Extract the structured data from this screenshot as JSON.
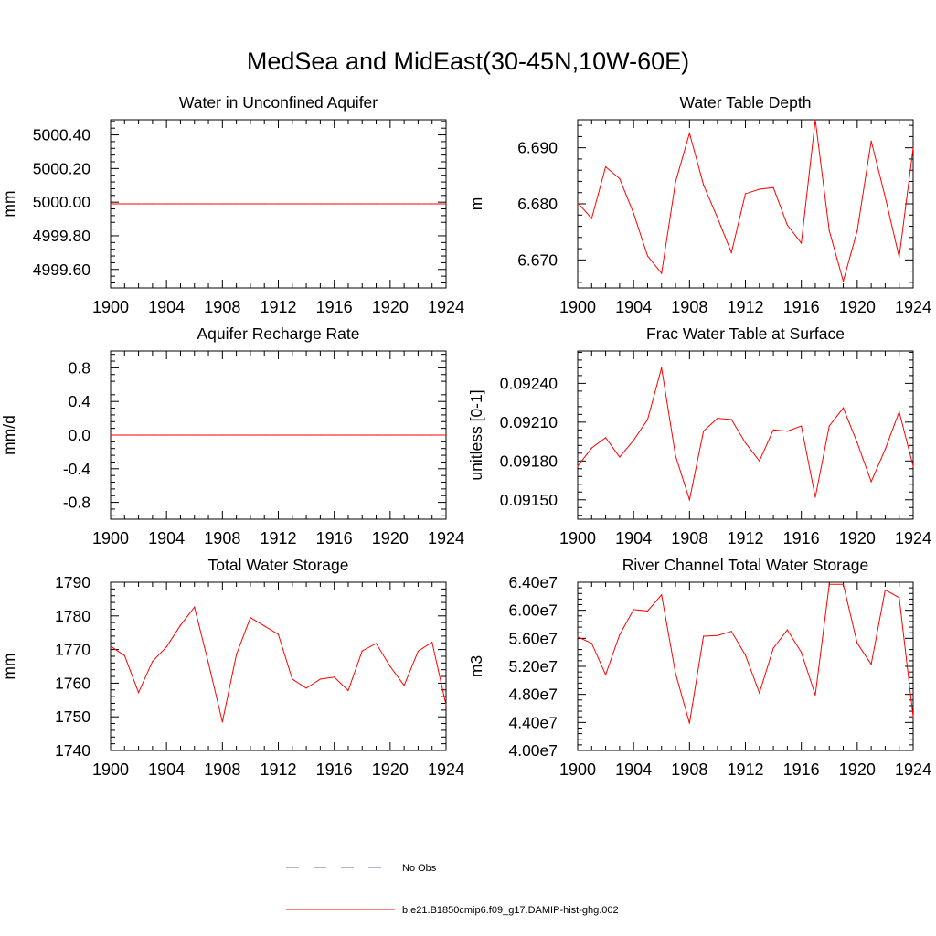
{
  "title": "MedSea and MidEast(30-45N,10W-60E)",
  "colors": {
    "model": "#ff0000",
    "obs": "#5a6ea8",
    "axis": "#000000"
  },
  "legend": {
    "obs_label": "No Obs",
    "model_label": "b.e21.B1850cmip6.f09_g17.DAMIP-hist-ghg.002"
  },
  "chart_data": [
    {
      "type": "line",
      "title": "Water in Unconfined Aquifer",
      "ylabel": "mm",
      "xlim": [
        1900,
        1924
      ],
      "ylim": [
        4999.49,
        5000.49
      ],
      "x_ticks": [
        "1900",
        "1904",
        "1908",
        "1912",
        "1916",
        "1920",
        "1924"
      ],
      "y_ticks": [
        {
          "v": 4999.6,
          "label": "4999.60"
        },
        {
          "v": 4999.8,
          "label": "4999.80"
        },
        {
          "v": 5000.0,
          "label": "5000.00"
        },
        {
          "v": 5000.2,
          "label": "5000.20"
        },
        {
          "v": 5000.4,
          "label": "5000.40"
        }
      ],
      "series": [
        {
          "x": [
            1900,
            1901,
            1902,
            1903,
            1904,
            1905,
            1906,
            1907,
            1908,
            1909,
            1910,
            1911,
            1912,
            1913,
            1914,
            1915,
            1916,
            1917,
            1918,
            1919,
            1920,
            1921,
            1922,
            1923,
            1924
          ],
          "y": [
            4999.99,
            4999.99,
            4999.99,
            4999.99,
            4999.99,
            4999.99,
            4999.99,
            4999.99,
            4999.99,
            4999.99,
            4999.99,
            4999.99,
            4999.99,
            4999.99,
            4999.99,
            4999.99,
            4999.99,
            4999.99,
            4999.99,
            4999.99,
            4999.99,
            4999.99,
            4999.99,
            4999.99,
            4999.99
          ]
        }
      ]
    },
    {
      "type": "line",
      "title": "Water Table Depth",
      "ylabel": "m",
      "xlim": [
        1900,
        1924
      ],
      "ylim": [
        6.665,
        6.695
      ],
      "x_ticks": [
        "1900",
        "1904",
        "1908",
        "1912",
        "1916",
        "1920",
        "1924"
      ],
      "y_ticks": [
        {
          "v": 6.67,
          "label": "6.670"
        },
        {
          "v": 6.68,
          "label": "6.680"
        },
        {
          "v": 6.69,
          "label": "6.690"
        }
      ],
      "series": [
        {
          "x": [
            1900,
            1901,
            1902,
            1903,
            1904,
            1905,
            1906,
            1907,
            1908,
            1909,
            1910,
            1911,
            1912,
            1913,
            1914,
            1915,
            1916,
            1917,
            1918,
            1919,
            1920,
            1921,
            1922,
            1923,
            1924
          ],
          "y": [
            6.6802,
            6.6774,
            6.6866,
            6.6845,
            6.6783,
            6.6707,
            6.6676,
            6.6839,
            6.6926,
            6.6834,
            6.6775,
            6.6713,
            6.6818,
            6.6826,
            6.6829,
            6.6762,
            6.673,
            6.695,
            6.6752,
            6.6662,
            6.6752,
            6.6912,
            6.6812,
            6.6705,
            6.69
          ]
        }
      ]
    },
    {
      "type": "line",
      "title": "Aquifer Recharge Rate",
      "ylabel": "mm/d",
      "xlim": [
        1900,
        1924
      ],
      "ylim": [
        -1.0,
        1.0
      ],
      "x_ticks": [
        "1900",
        "1904",
        "1908",
        "1912",
        "1916",
        "1920",
        "1924"
      ],
      "y_ticks": [
        {
          "v": -0.8,
          "label": "-0.8"
        },
        {
          "v": -0.4,
          "label": "-0.4"
        },
        {
          "v": 0.0,
          "label": "0.0"
        },
        {
          "v": 0.4,
          "label": "0.4"
        },
        {
          "v": 0.8,
          "label": "0.8"
        }
      ],
      "series": [
        {
          "x": [
            1900,
            1901,
            1902,
            1903,
            1904,
            1905,
            1906,
            1907,
            1908,
            1909,
            1910,
            1911,
            1912,
            1913,
            1914,
            1915,
            1916,
            1917,
            1918,
            1919,
            1920,
            1921,
            1922,
            1923,
            1924
          ],
          "y": [
            0,
            0,
            0,
            0,
            0,
            0,
            0,
            0,
            0,
            0,
            0,
            0,
            0,
            0,
            0,
            0,
            0,
            0,
            0,
            0,
            0,
            0,
            0,
            0,
            0
          ]
        }
      ]
    },
    {
      "type": "line",
      "title": "Frac Water Table at Surface",
      "ylabel": "unitless [0-1]",
      "xlim": [
        1900,
        1924
      ],
      "ylim": [
        0.09135,
        0.09265
      ],
      "x_ticks": [
        "1900",
        "1904",
        "1908",
        "1912",
        "1916",
        "1920",
        "1924"
      ],
      "y_ticks": [
        {
          "v": 0.0915,
          "label": "0.09150"
        },
        {
          "v": 0.0918,
          "label": "0.09180"
        },
        {
          "v": 0.0921,
          "label": "0.09210"
        },
        {
          "v": 0.0924,
          "label": "0.09240"
        }
      ],
      "series": [
        {
          "x": [
            1900,
            1901,
            1902,
            1903,
            1904,
            1905,
            1906,
            1907,
            1908,
            1909,
            1910,
            1911,
            1912,
            1913,
            1914,
            1915,
            1916,
            1917,
            1918,
            1919,
            1920,
            1921,
            1922,
            1923,
            1924
          ],
          "y": [
            0.09176,
            0.0919,
            0.09198,
            0.09183,
            0.09196,
            0.09212,
            0.09252,
            0.09184,
            0.0915,
            0.09203,
            0.09213,
            0.09212,
            0.09194,
            0.0918,
            0.09204,
            0.09203,
            0.09207,
            0.09152,
            0.09207,
            0.09221,
            0.09194,
            0.09164,
            0.09189,
            0.09218,
            0.09176
          ]
        }
      ]
    },
    {
      "type": "line",
      "title": "Total Water Storage",
      "ylabel": "mm",
      "xlim": [
        1900,
        1924
      ],
      "ylim": [
        1740,
        1790
      ],
      "x_ticks": [
        "1900",
        "1904",
        "1908",
        "1912",
        "1916",
        "1920",
        "1924"
      ],
      "y_ticks": [
        {
          "v": 1740,
          "label": "1740"
        },
        {
          "v": 1750,
          "label": "1750"
        },
        {
          "v": 1760,
          "label": "1760"
        },
        {
          "v": 1770,
          "label": "1770"
        },
        {
          "v": 1780,
          "label": "1780"
        },
        {
          "v": 1790,
          "label": "1790"
        }
      ],
      "series": [
        {
          "x": [
            1900,
            1901,
            1902,
            1903,
            1904,
            1905,
            1906,
            1907,
            1908,
            1909,
            1910,
            1911,
            1912,
            1913,
            1914,
            1915,
            1916,
            1917,
            1918,
            1919,
            1920,
            1921,
            1922,
            1923,
            1924
          ],
          "y": [
            1771.0,
            1768.2,
            1757.2,
            1766.5,
            1770.8,
            1777.2,
            1782.6,
            1766.0,
            1748.5,
            1768.5,
            1779.5,
            1777.0,
            1774.5,
            1761.2,
            1758.5,
            1761.2,
            1761.8,
            1757.8,
            1769.6,
            1771.8,
            1765.0,
            1759.3,
            1769.5,
            1772.2,
            1753.5
          ]
        }
      ]
    },
    {
      "type": "line",
      "title": "River Channel Total Water Storage",
      "ylabel": "m3",
      "xlim": [
        1900,
        1924
      ],
      "ylim": [
        40000000,
        64000000
      ],
      "x_ticks": [
        "1900",
        "1904",
        "1908",
        "1912",
        "1916",
        "1920",
        "1924"
      ],
      "y_ticks": [
        {
          "v": 40000000,
          "label": "4.00e7"
        },
        {
          "v": 44000000,
          "label": "4.40e7"
        },
        {
          "v": 48000000,
          "label": "4.80e7"
        },
        {
          "v": 52000000,
          "label": "5.20e7"
        },
        {
          "v": 56000000,
          "label": "5.60e7"
        },
        {
          "v": 60000000,
          "label": "6.00e7"
        },
        {
          "v": 64000000,
          "label": "6.40e7"
        }
      ],
      "series": [
        {
          "x": [
            1900,
            1901,
            1902,
            1903,
            1904,
            1905,
            1906,
            1907,
            1908,
            1909,
            1910,
            1911,
            1912,
            1913,
            1914,
            1915,
            1916,
            1917,
            1918,
            1919,
            1920,
            1921,
            1922,
            1923,
            1924
          ],
          "y": [
            56200000,
            55300000,
            50800000,
            56500000,
            60100000,
            59900000,
            62200000,
            51000000,
            43900000,
            56300000,
            56400000,
            57000000,
            53600000,
            48200000,
            54600000,
            57200000,
            54000000,
            47900000,
            63700000,
            63700000,
            55300000,
            52300000,
            62900000,
            61800000,
            44800000
          ]
        }
      ]
    }
  ]
}
